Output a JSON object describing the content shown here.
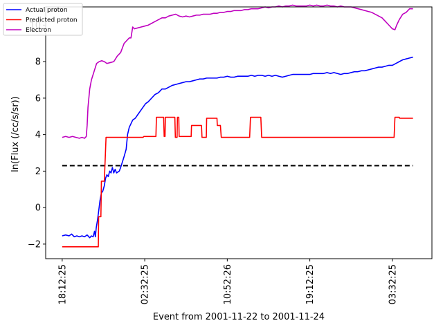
{
  "chart_data": {
    "type": "line",
    "title": "",
    "xlabel": "Event from 2001-11-22 to 2001-11-24",
    "ylabel": "ln(Flux (/cc/s/sr))",
    "x_ticks": [
      {
        "pos": 0,
        "label": "18:12:25"
      },
      {
        "pos": 480,
        "label": "02:32:25"
      },
      {
        "pos": 960,
        "label": "10:52:26"
      },
      {
        "pos": 1440,
        "label": "19:12:25"
      },
      {
        "pos": 1920,
        "label": "03:32:25"
      }
    ],
    "xlim": [
      -96,
      2150
    ],
    "ylim": [
      -2.8,
      11.0
    ],
    "y_ticks": [
      -2,
      0,
      2,
      4,
      6,
      8,
      10
    ],
    "grid": false,
    "legend_position": "top-left",
    "threshold": {
      "y": 2.3,
      "x": [
        0,
        2040
      ],
      "style": "dashed",
      "color": "#000000"
    },
    "series": [
      {
        "name": "Actual proton",
        "color": "#0000ff",
        "points": [
          [
            0,
            -1.55
          ],
          [
            20,
            -1.5
          ],
          [
            40,
            -1.55
          ],
          [
            55,
            -1.45
          ],
          [
            70,
            -1.6
          ],
          [
            85,
            -1.55
          ],
          [
            100,
            -1.6
          ],
          [
            115,
            -1.55
          ],
          [
            130,
            -1.6
          ],
          [
            145,
            -1.5
          ],
          [
            160,
            -1.65
          ],
          [
            170,
            -1.55
          ],
          [
            180,
            -1.6
          ],
          [
            188,
            -1.3
          ],
          [
            193,
            -1.6
          ],
          [
            198,
            -1.1
          ],
          [
            205,
            -0.7
          ],
          [
            212,
            -0.2
          ],
          [
            220,
            0.4
          ],
          [
            228,
            0.8
          ],
          [
            236,
            0.9
          ],
          [
            245,
            1.2
          ],
          [
            252,
            1.6
          ],
          [
            260,
            1.8
          ],
          [
            268,
            1.7
          ],
          [
            276,
            2.0
          ],
          [
            284,
            1.9
          ],
          [
            292,
            2.2
          ],
          [
            300,
            1.9
          ],
          [
            308,
            2.1
          ],
          [
            316,
            1.9
          ],
          [
            324,
            1.95
          ],
          [
            332,
            2.0
          ],
          [
            340,
            2.2
          ],
          [
            350,
            2.5
          ],
          [
            360,
            2.8
          ],
          [
            372,
            3.2
          ],
          [
            380,
            4.0
          ],
          [
            390,
            4.4
          ],
          [
            400,
            4.6
          ],
          [
            410,
            4.8
          ],
          [
            425,
            4.9
          ],
          [
            440,
            5.1
          ],
          [
            455,
            5.3
          ],
          [
            470,
            5.5
          ],
          [
            485,
            5.7
          ],
          [
            500,
            5.8
          ],
          [
            520,
            6.0
          ],
          [
            540,
            6.2
          ],
          [
            560,
            6.3
          ],
          [
            580,
            6.5
          ],
          [
            600,
            6.5
          ],
          [
            620,
            6.6
          ],
          [
            640,
            6.7
          ],
          [
            660,
            6.75
          ],
          [
            680,
            6.8
          ],
          [
            700,
            6.85
          ],
          [
            720,
            6.9
          ],
          [
            740,
            6.9
          ],
          [
            760,
            6.95
          ],
          [
            780,
            7.0
          ],
          [
            800,
            7.05
          ],
          [
            820,
            7.05
          ],
          [
            840,
            7.1
          ],
          [
            860,
            7.1
          ],
          [
            880,
            7.1
          ],
          [
            900,
            7.1
          ],
          [
            920,
            7.15
          ],
          [
            940,
            7.15
          ],
          [
            960,
            7.2
          ],
          [
            980,
            7.15
          ],
          [
            1000,
            7.15
          ],
          [
            1020,
            7.2
          ],
          [
            1040,
            7.2
          ],
          [
            1060,
            7.2
          ],
          [
            1080,
            7.2
          ],
          [
            1100,
            7.25
          ],
          [
            1120,
            7.2
          ],
          [
            1140,
            7.25
          ],
          [
            1160,
            7.25
          ],
          [
            1180,
            7.2
          ],
          [
            1200,
            7.25
          ],
          [
            1220,
            7.2
          ],
          [
            1240,
            7.25
          ],
          [
            1260,
            7.2
          ],
          [
            1280,
            7.15
          ],
          [
            1300,
            7.2
          ],
          [
            1320,
            7.25
          ],
          [
            1340,
            7.3
          ],
          [
            1360,
            7.3
          ],
          [
            1380,
            7.3
          ],
          [
            1400,
            7.3
          ],
          [
            1420,
            7.3
          ],
          [
            1440,
            7.3
          ],
          [
            1460,
            7.35
          ],
          [
            1480,
            7.35
          ],
          [
            1500,
            7.35
          ],
          [
            1520,
            7.35
          ],
          [
            1540,
            7.4
          ],
          [
            1560,
            7.35
          ],
          [
            1580,
            7.4
          ],
          [
            1600,
            7.35
          ],
          [
            1620,
            7.3
          ],
          [
            1640,
            7.35
          ],
          [
            1660,
            7.35
          ],
          [
            1680,
            7.4
          ],
          [
            1700,
            7.45
          ],
          [
            1720,
            7.45
          ],
          [
            1740,
            7.5
          ],
          [
            1760,
            7.5
          ],
          [
            1780,
            7.55
          ],
          [
            1800,
            7.6
          ],
          [
            1820,
            7.65
          ],
          [
            1840,
            7.7
          ],
          [
            1860,
            7.7
          ],
          [
            1880,
            7.75
          ],
          [
            1900,
            7.8
          ],
          [
            1920,
            7.8
          ],
          [
            1940,
            7.9
          ],
          [
            1960,
            8.0
          ],
          [
            1980,
            8.1
          ],
          [
            2000,
            8.15
          ],
          [
            2020,
            8.2
          ],
          [
            2040,
            8.25
          ]
        ]
      },
      {
        "name": "Predicted proton",
        "color": "#ff0000",
        "points": [
          [
            0,
            -2.15
          ],
          [
            210,
            -2.15
          ],
          [
            212,
            -0.5
          ],
          [
            225,
            -0.5
          ],
          [
            228,
            1.45
          ],
          [
            245,
            1.45
          ],
          [
            255,
            3.85
          ],
          [
            470,
            3.85
          ],
          [
            475,
            3.9
          ],
          [
            545,
            3.9
          ],
          [
            548,
            4.95
          ],
          [
            590,
            4.95
          ],
          [
            593,
            3.9
          ],
          [
            598,
            3.9
          ],
          [
            600,
            4.95
          ],
          [
            655,
            4.95
          ],
          [
            658,
            3.85
          ],
          [
            668,
            3.85
          ],
          [
            670,
            4.95
          ],
          [
            678,
            4.95
          ],
          [
            680,
            3.9
          ],
          [
            750,
            3.9
          ],
          [
            752,
            4.5
          ],
          [
            810,
            4.5
          ],
          [
            813,
            3.85
          ],
          [
            838,
            3.85
          ],
          [
            840,
            4.9
          ],
          [
            900,
            4.9
          ],
          [
            902,
            4.5
          ],
          [
            920,
            4.5
          ],
          [
            925,
            3.85
          ],
          [
            1090,
            3.85
          ],
          [
            1095,
            4.95
          ],
          [
            1155,
            4.95
          ],
          [
            1160,
            3.85
          ],
          [
            1930,
            3.85
          ],
          [
            1935,
            4.95
          ],
          [
            1960,
            4.95
          ],
          [
            1962,
            4.9
          ],
          [
            2040,
            4.9
          ]
        ]
      },
      {
        "name": "Electron",
        "color": "#bf00bf",
        "points": [
          [
            0,
            3.85
          ],
          [
            20,
            3.9
          ],
          [
            40,
            3.85
          ],
          [
            60,
            3.9
          ],
          [
            80,
            3.85
          ],
          [
            100,
            3.8
          ],
          [
            115,
            3.85
          ],
          [
            130,
            3.8
          ],
          [
            140,
            3.9
          ],
          [
            145,
            4.5
          ],
          [
            150,
            5.5
          ],
          [
            160,
            6.5
          ],
          [
            170,
            7.0
          ],
          [
            180,
            7.3
          ],
          [
            190,
            7.6
          ],
          [
            200,
            7.9
          ],
          [
            215,
            8.0
          ],
          [
            230,
            8.05
          ],
          [
            245,
            8.0
          ],
          [
            260,
            7.9
          ],
          [
            280,
            7.95
          ],
          [
            300,
            8.0
          ],
          [
            320,
            8.3
          ],
          [
            340,
            8.5
          ],
          [
            360,
            9.0
          ],
          [
            380,
            9.2
          ],
          [
            390,
            9.3
          ],
          [
            400,
            9.3
          ],
          [
            410,
            9.9
          ],
          [
            420,
            9.8
          ],
          [
            440,
            9.85
          ],
          [
            460,
            9.9
          ],
          [
            480,
            9.95
          ],
          [
            500,
            10.0
          ],
          [
            520,
            10.1
          ],
          [
            540,
            10.2
          ],
          [
            560,
            10.3
          ],
          [
            580,
            10.4
          ],
          [
            600,
            10.4
          ],
          [
            620,
            10.5
          ],
          [
            640,
            10.55
          ],
          [
            660,
            10.6
          ],
          [
            680,
            10.5
          ],
          [
            700,
            10.45
          ],
          [
            720,
            10.5
          ],
          [
            740,
            10.45
          ],
          [
            760,
            10.5
          ],
          [
            780,
            10.55
          ],
          [
            800,
            10.55
          ],
          [
            820,
            10.6
          ],
          [
            840,
            10.6
          ],
          [
            860,
            10.6
          ],
          [
            880,
            10.65
          ],
          [
            900,
            10.65
          ],
          [
            920,
            10.7
          ],
          [
            940,
            10.7
          ],
          [
            960,
            10.75
          ],
          [
            980,
            10.75
          ],
          [
            1000,
            10.8
          ],
          [
            1020,
            10.8
          ],
          [
            1040,
            10.8
          ],
          [
            1060,
            10.85
          ],
          [
            1080,
            10.85
          ],
          [
            1100,
            10.9
          ],
          [
            1120,
            10.9
          ],
          [
            1140,
            10.9
          ],
          [
            1160,
            10.95
          ],
          [
            1180,
            11.0
          ],
          [
            1200,
            10.95
          ],
          [
            1220,
            11.0
          ],
          [
            1240,
            11.0
          ],
          [
            1260,
            11.05
          ],
          [
            1280,
            11.0
          ],
          [
            1300,
            11.05
          ],
          [
            1320,
            11.05
          ],
          [
            1340,
            11.1
          ],
          [
            1360,
            11.05
          ],
          [
            1380,
            11.05
          ],
          [
            1400,
            11.05
          ],
          [
            1420,
            11.05
          ],
          [
            1440,
            11.1
          ],
          [
            1460,
            11.05
          ],
          [
            1480,
            11.1
          ],
          [
            1500,
            11.05
          ],
          [
            1520,
            11.05
          ],
          [
            1540,
            11.1
          ],
          [
            1560,
            11.05
          ],
          [
            1580,
            11.05
          ],
          [
            1600,
            11.0
          ],
          [
            1620,
            11.05
          ],
          [
            1640,
            11.0
          ],
          [
            1660,
            11.0
          ],
          [
            1680,
            11.0
          ],
          [
            1700,
            10.95
          ],
          [
            1720,
            10.9
          ],
          [
            1740,
            10.85
          ],
          [
            1760,
            10.8
          ],
          [
            1780,
            10.75
          ],
          [
            1800,
            10.7
          ],
          [
            1820,
            10.6
          ],
          [
            1840,
            10.5
          ],
          [
            1860,
            10.4
          ],
          [
            1880,
            10.2
          ],
          [
            1900,
            10.0
          ],
          [
            1920,
            9.8
          ],
          [
            1935,
            9.75
          ],
          [
            1945,
            10.0
          ],
          [
            1960,
            10.3
          ],
          [
            1980,
            10.6
          ],
          [
            2000,
            10.7
          ],
          [
            2020,
            10.9
          ],
          [
            2040,
            10.9
          ]
        ]
      }
    ]
  }
}
